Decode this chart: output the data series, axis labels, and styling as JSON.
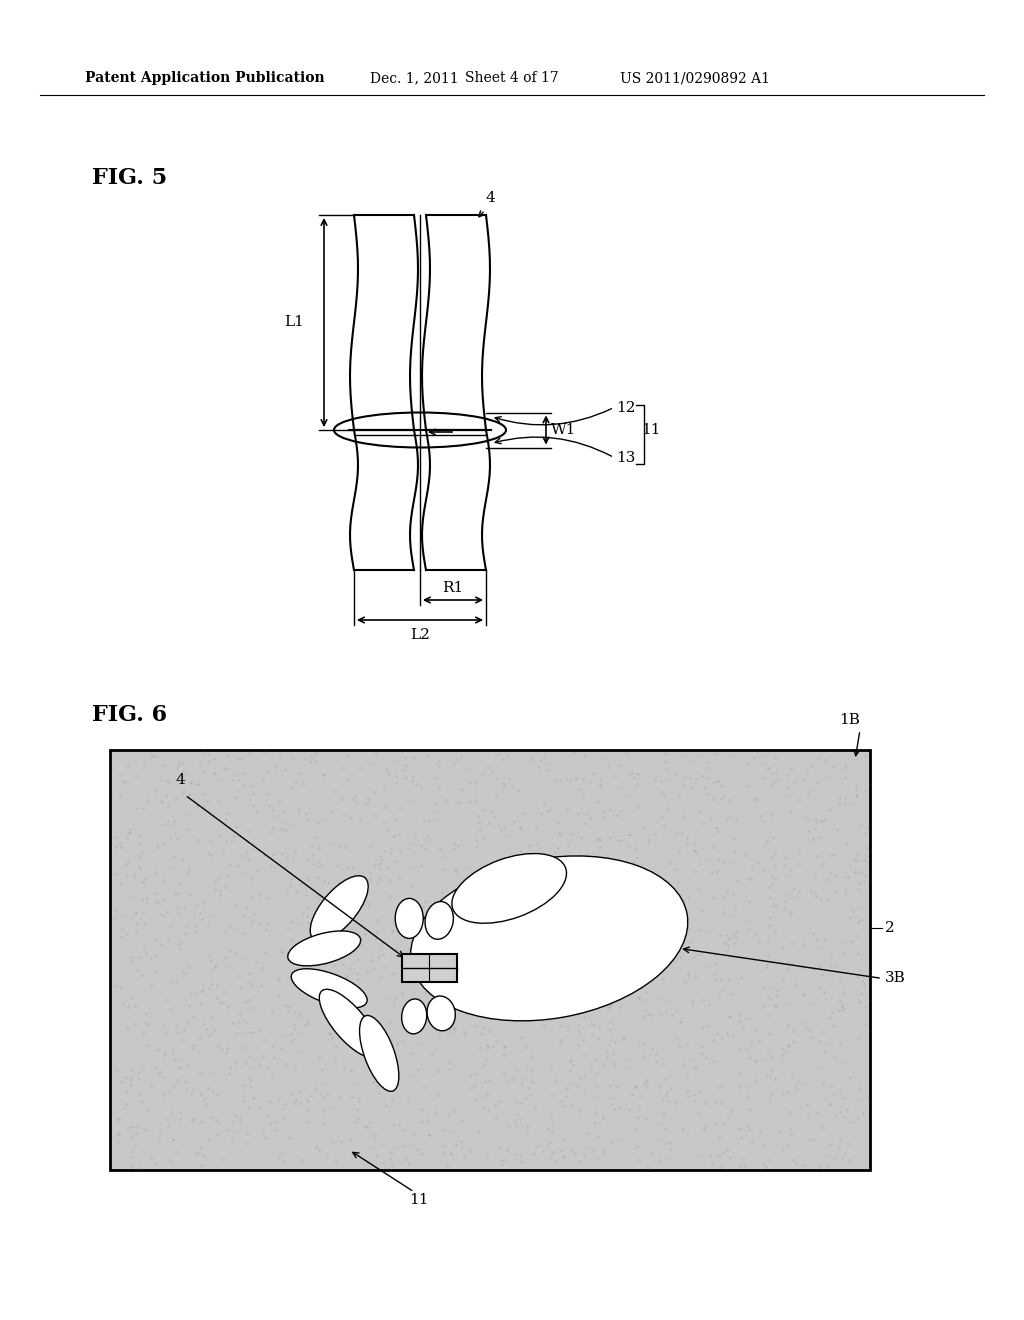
{
  "bg_color": "#ffffff",
  "header_text": "Patent Application Publication",
  "header_date": "Dec. 1, 2011",
  "header_sheet": "Sheet 4 of 17",
  "header_patent": "US 2011/0290892 A1",
  "fig5_label": "FIG. 5",
  "fig6_label": "FIG. 6",
  "labels": {
    "L1": "L1",
    "L2": "L2",
    "R1": "R1",
    "W1": "W1",
    "4_top": "4",
    "11": "11",
    "12": "12",
    "13": "13",
    "1B": "1B",
    "2": "2",
    "3B": "3B",
    "4_fig6": "4",
    "11_fig6": "11"
  }
}
